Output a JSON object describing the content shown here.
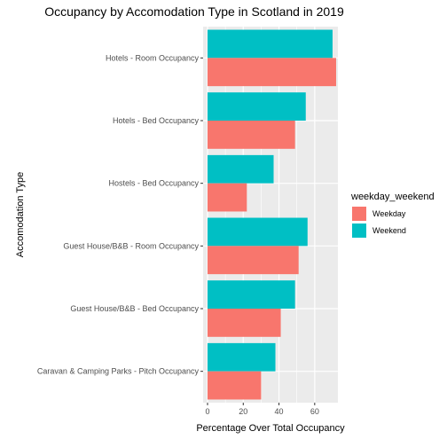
{
  "chart_data": {
    "type": "bar",
    "orientation": "horizontal",
    "title": "Occupancy by Accomodation Type in Scotland  in 2019",
    "xlabel": "Percentage Over Total Occupancy",
    "ylabel": "Accomodation Type",
    "xlim": [
      0,
      73
    ],
    "x_ticks": [
      "0",
      "20",
      "40",
      "60"
    ],
    "x_tick_values": [
      0,
      20,
      40,
      60
    ],
    "categories": [
      "Hotels - Room Occupancy",
      "Hotels - Bed Occupancy",
      "Hostels - Bed Occupancy",
      "Guest House/B&B - Room Occupancy",
      "Guest House/B&B - Bed Occupancy",
      "Caravan & Camping Parks - Pitch Occupancy"
    ],
    "series": [
      {
        "name": "Weekday",
        "color": "#F8766D",
        "values": [
          72,
          49,
          22,
          51,
          41,
          30
        ]
      },
      {
        "name": "Weekend",
        "color": "#00BFC4",
        "values": [
          70,
          55,
          37,
          56,
          49,
          38
        ]
      }
    ],
    "legend": {
      "title": "weekday_weekend",
      "placement": "right",
      "items": [
        "Weekday",
        "Weekend"
      ]
    },
    "grid": true,
    "panel_background": "#EBEBEB"
  }
}
